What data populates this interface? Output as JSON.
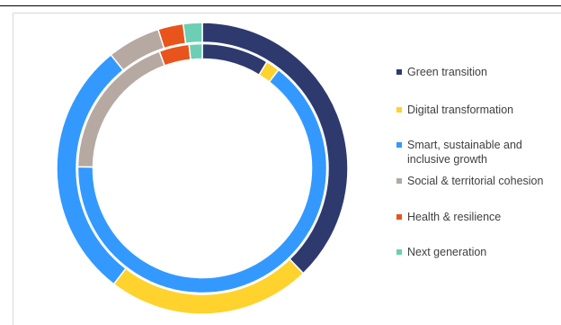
{
  "chart_data": {
    "type": "donut",
    "rings": [
      "outer",
      "inner"
    ],
    "categories": [
      "Green transition",
      "Digital transformation",
      "Smart, sustainable and inclusive growth",
      "Social & territorial cohesion",
      "Health & resilience",
      "Next generation"
    ],
    "colors": [
      "#2E3A6E",
      "#FFD22E",
      "#3399FF",
      "#B5A9A2",
      "#E8541C",
      "#6CCFB4"
    ],
    "series": [
      {
        "values": [
          37.8,
          22.6,
          28.8,
          5.9,
          2.8,
          2.1
        ]
      },
      {
        "values": [
          8.7,
          1.8,
          64.7,
          19.2,
          3.9,
          1.7
        ]
      }
    ],
    "legend_position": "right"
  },
  "legend": {
    "items": [
      {
        "label": "Green transition",
        "color": "#2E3A6E"
      },
      {
        "label": "Digital transformation",
        "color": "#FFD22E"
      },
      {
        "label": "Smart, sustainable and inclusive growth",
        "color": "#3399FF"
      },
      {
        "label": "Social & territorial cohesion",
        "color": "#B5A9A2"
      },
      {
        "label": "Health & resilience",
        "color": "#E8541C"
      },
      {
        "label": "Next generation",
        "color": "#6CCFB4"
      }
    ]
  }
}
